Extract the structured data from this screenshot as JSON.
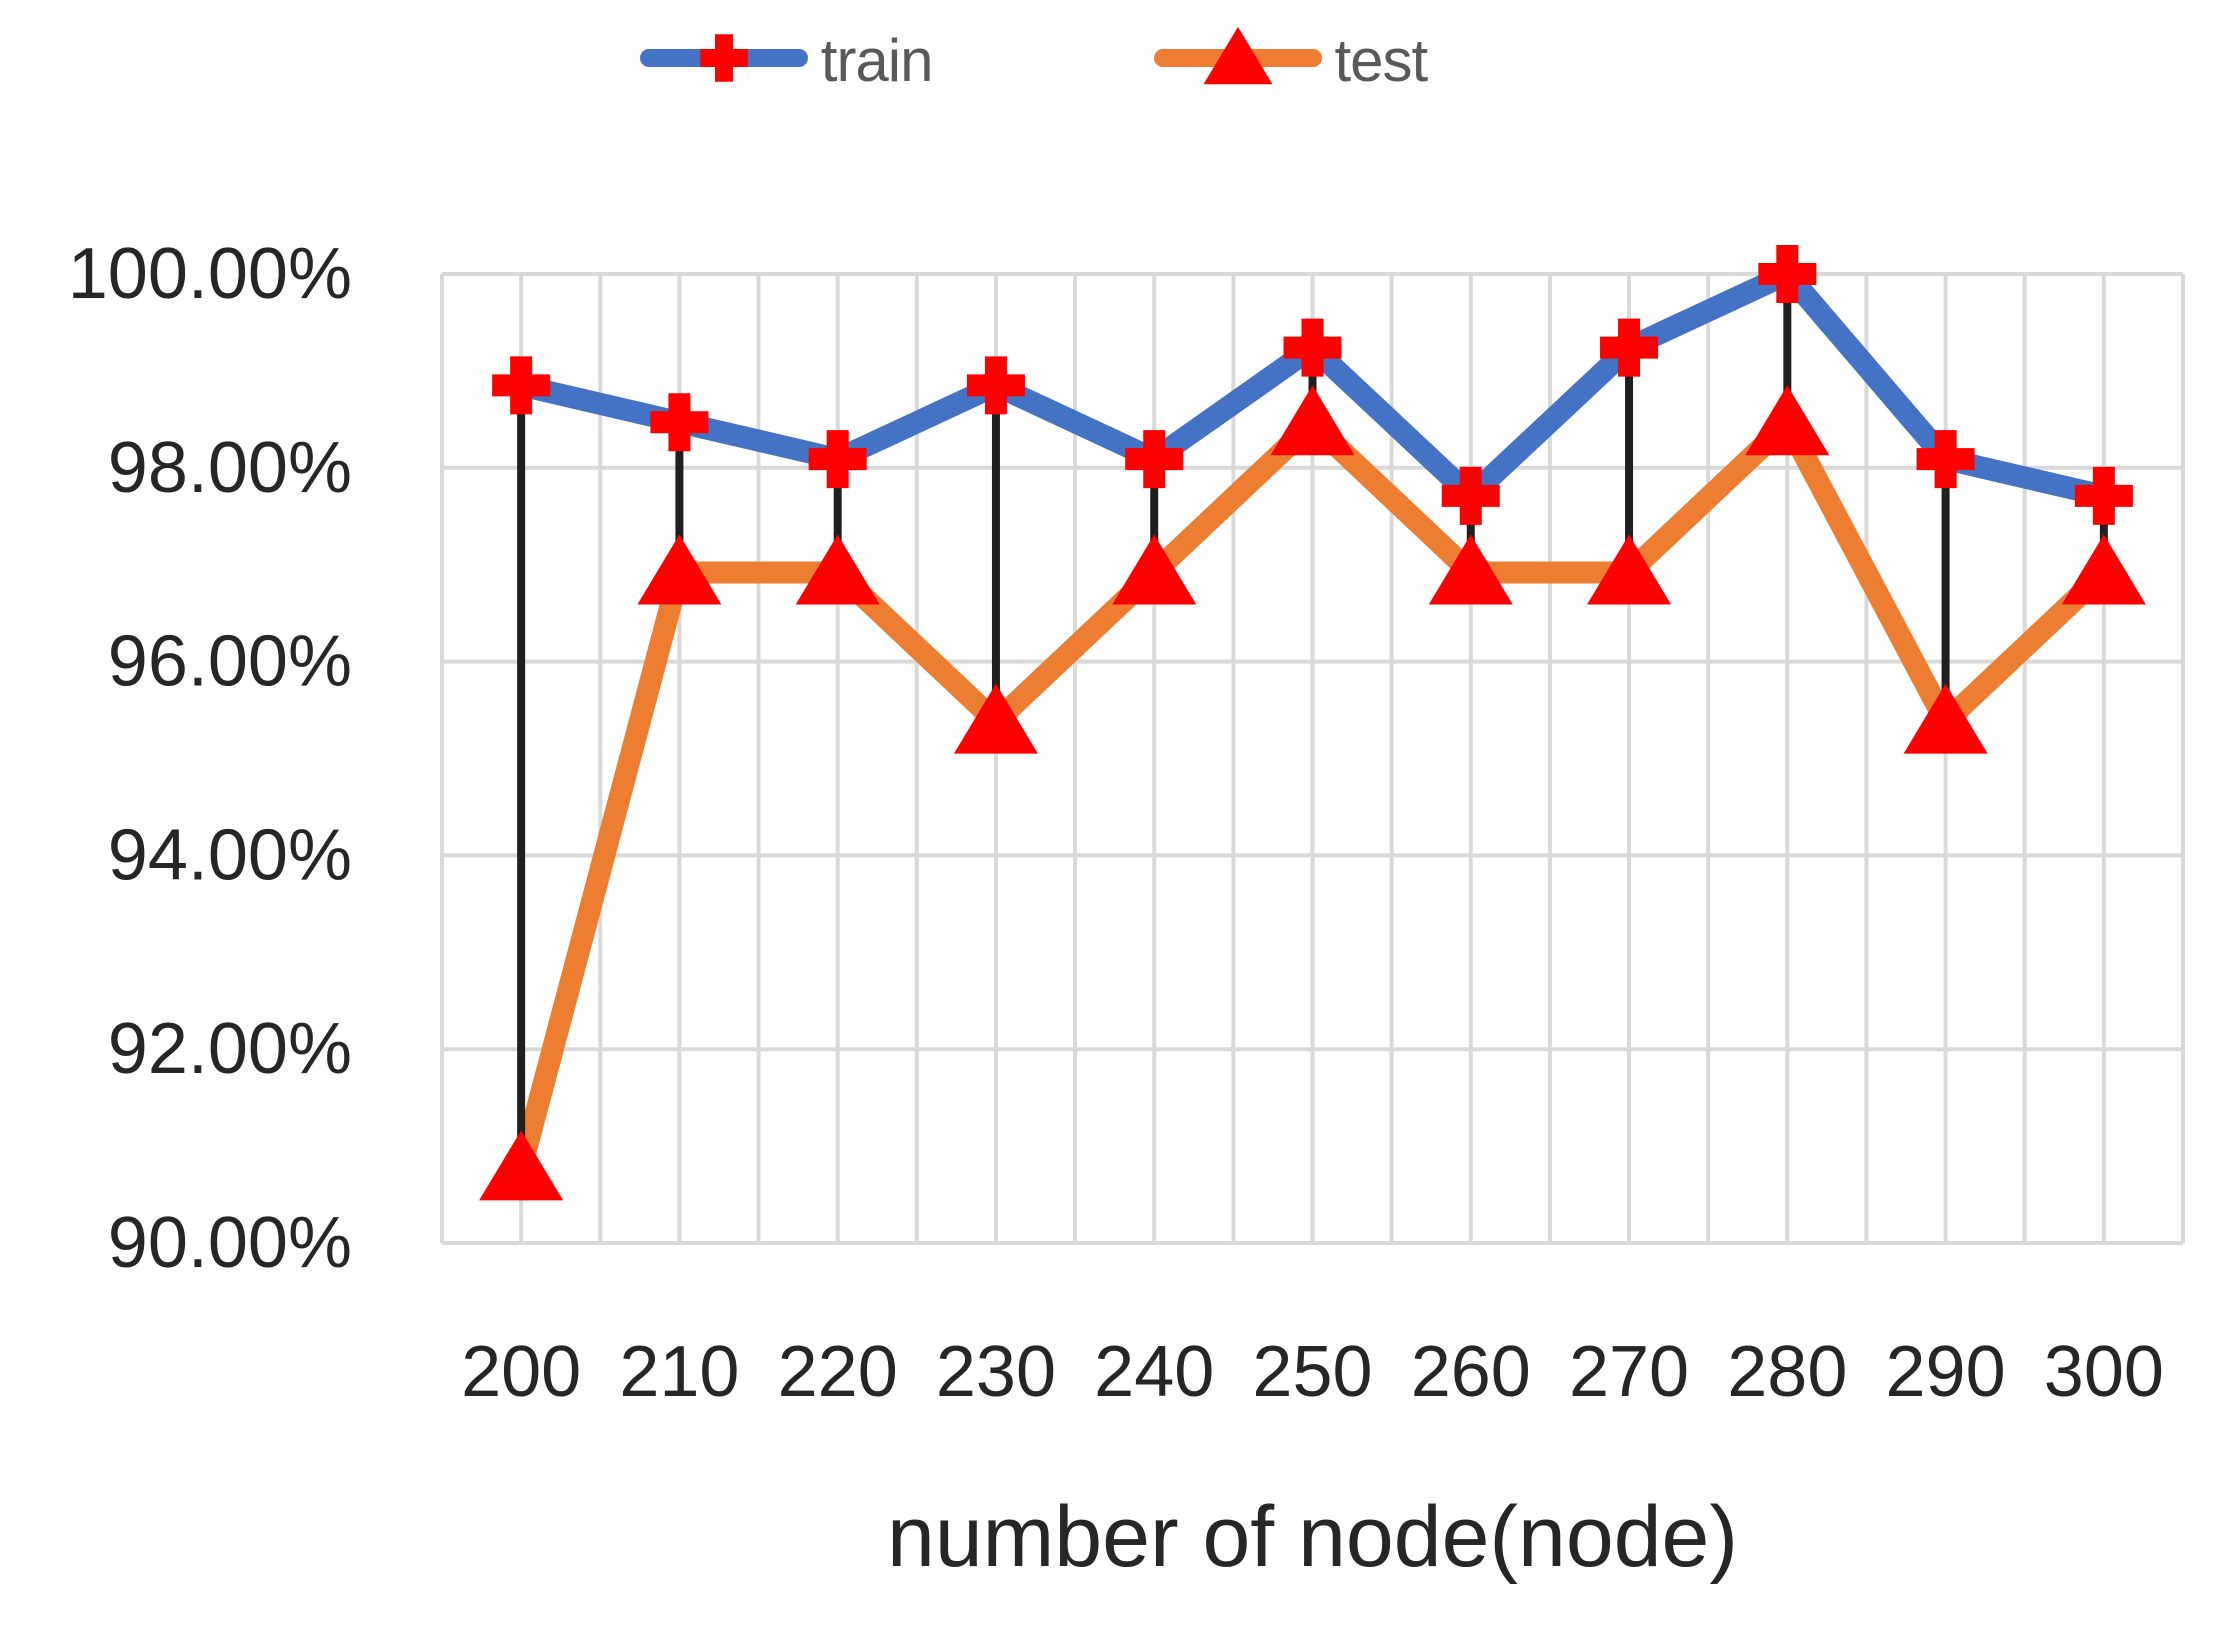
{
  "chart_data": {
    "type": "line",
    "title": "",
    "xlabel": "number of node(node)",
    "ylabel": "",
    "x": [
      200,
      210,
      220,
      230,
      240,
      250,
      260,
      270,
      280,
      290,
      300
    ],
    "x_tick_labels": [
      "200",
      "210",
      "220",
      "230",
      "240",
      "250",
      "260",
      "270",
      "280",
      "290",
      "300"
    ],
    "ylim": [
      90,
      100
    ],
    "yticks": [
      90,
      92,
      94,
      96,
      98,
      100
    ],
    "ytick_labels": [
      "90.00%",
      "92.00%",
      "94.00%",
      "96.00%",
      "98.00%",
      "100.00%"
    ],
    "grid": true,
    "minor_vertical_grid_step_units": 5,
    "legend_position": "top-center",
    "series": [
      {
        "name": "train",
        "line_color": "#4472C4",
        "marker": "plus",
        "marker_color": "#FF0000",
        "values": [
          98.85,
          98.47,
          98.09,
          98.85,
          98.09,
          99.24,
          97.71,
          99.24,
          100.0,
          98.09,
          97.71
        ]
      },
      {
        "name": "test",
        "line_color": "#ED7D31",
        "marker": "triangle",
        "marker_color": "#FF0000",
        "values": [
          90.77,
          96.92,
          96.92,
          95.38,
          96.92,
          98.46,
          96.92,
          96.92,
          98.46,
          95.38,
          96.92
        ]
      }
    ],
    "high_low_lines": {
      "enabled": true,
      "color": "#1F1F1F"
    }
  },
  "colors": {
    "grid": "#D9D9D9",
    "text": "#262626",
    "legend_text": "#595959",
    "background": "#FFFFFF"
  }
}
